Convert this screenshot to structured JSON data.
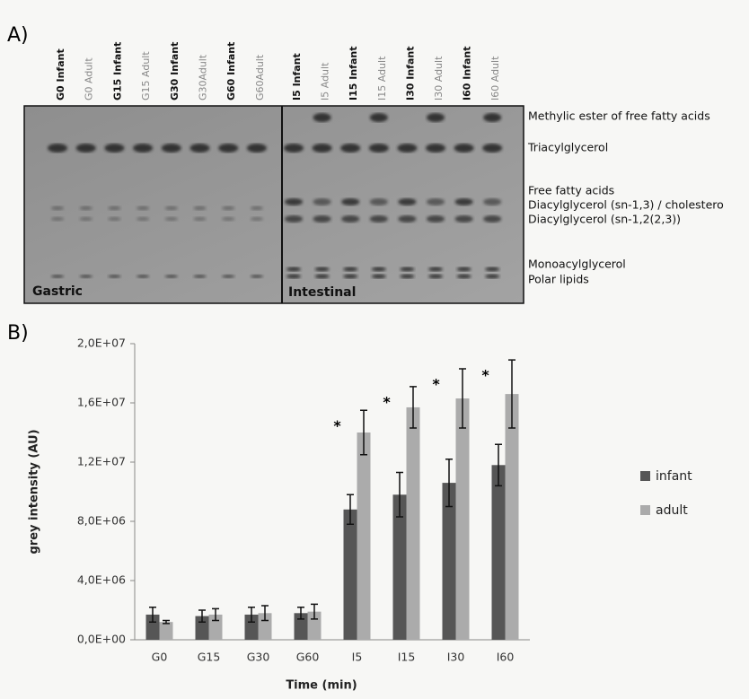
{
  "panel_a": {
    "label": "A)",
    "lanes": [
      "G0 Infant",
      "G0 Adult",
      "G15 Infant",
      "G15 Adult",
      "G30 Infant",
      "G30Adult",
      "G60 Infant",
      "G60Adult",
      "I5 Infant",
      "I5 Adult",
      "I15 Infant",
      "I15 Adult",
      "I30 Infant",
      "I30 Adult",
      "I60 Infant",
      "I60 Adult"
    ],
    "sections": [
      "Gastric",
      "Intestinal"
    ],
    "bands": [
      "Methylic ester of free fatty acids",
      "Triacylglycerol",
      "Free fatty acids",
      "Diacylglycerol (sn-1,3) / cholestero",
      "Diacylglycerol (sn-1,2(2,3))",
      "Monoacylglycerol",
      "Polar lipids"
    ]
  },
  "panel_b_label": "B)",
  "chart_data": {
    "type": "bar",
    "x_label": "Time (min)",
    "y_label": "grey intensity (AU)",
    "categories": [
      "G0",
      "G15",
      "G30",
      "G60",
      "I5",
      "I15",
      "I30",
      "I60"
    ],
    "series": [
      {
        "name": "infant",
        "color": "#565656",
        "values": [
          1700000,
          1600000,
          1700000,
          1800000,
          8800000,
          9800000,
          10600000,
          11800000
        ],
        "errors": [
          500000,
          400000,
          500000,
          400000,
          1000000,
          1500000,
          1600000,
          1400000
        ]
      },
      {
        "name": "adult",
        "color": "#ababab",
        "values": [
          1200000,
          1700000,
          1800000,
          1900000,
          14000000,
          15700000,
          16300000,
          16600000
        ],
        "errors": [
          100000,
          400000,
          500000,
          500000,
          1500000,
          1400000,
          2000000,
          2300000
        ]
      }
    ],
    "significance_labels": [
      null,
      null,
      null,
      null,
      "*",
      "*",
      "*",
      "*"
    ],
    "ylim": [
      0,
      20000000
    ],
    "yticks": [
      {
        "value": 0,
        "label": "0,0E+00"
      },
      {
        "value": 4000000,
        "label": "4,0E+06"
      },
      {
        "value": 8000000,
        "label": "8,0E+06"
      },
      {
        "value": 12000000,
        "label": "1,2E+07"
      },
      {
        "value": 16000000,
        "label": "1,6E+07"
      },
      {
        "value": 20000000,
        "label": "2,0E+07"
      }
    ],
    "legend": "right"
  }
}
